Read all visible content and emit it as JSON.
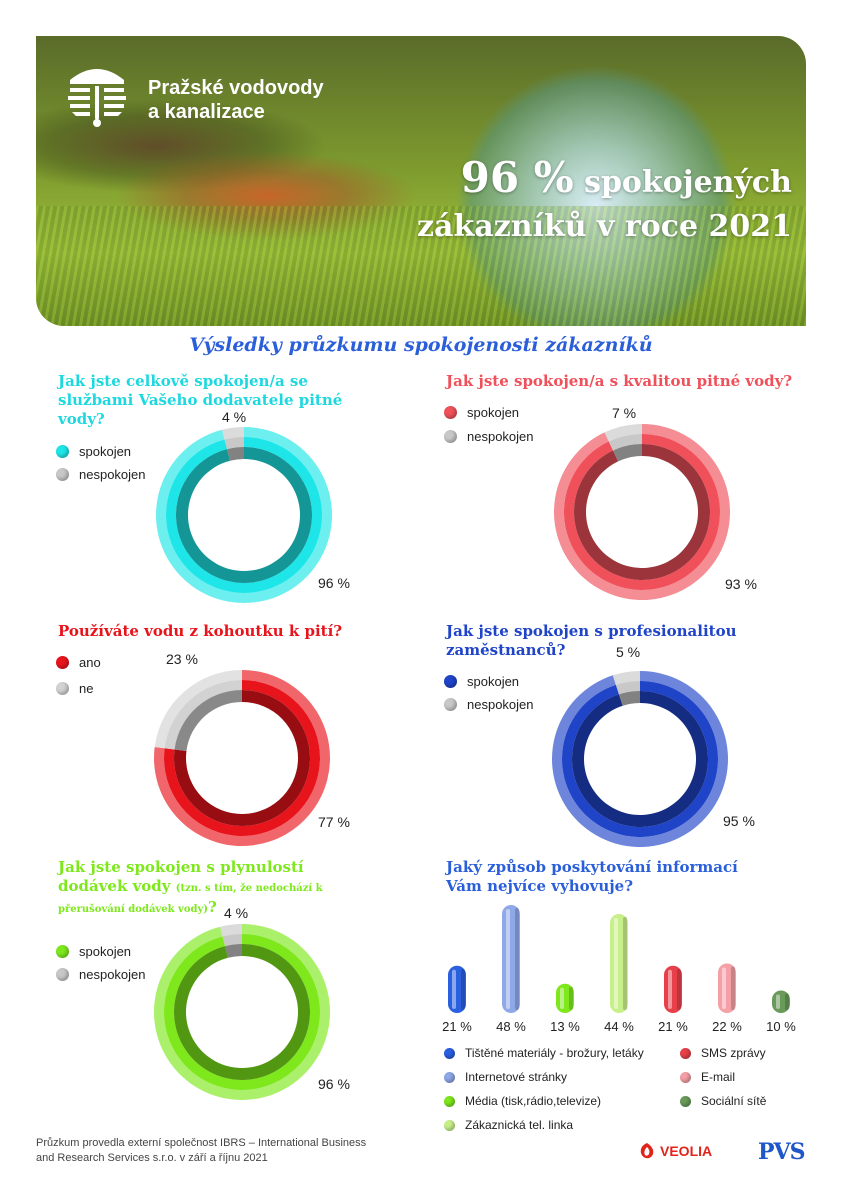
{
  "header": {
    "company_line1": "Pražské vodovody",
    "company_line2": "a kanalizace",
    "headline_percent": "96 %",
    "headline_rest1": "spokojených",
    "headline_line2": "zákazníků v roce 2021"
  },
  "subtitle": "Výsledky průzkumu spokojenosti zákazníků",
  "chart_data": [
    {
      "type": "pie",
      "title": "Jak jste celkově spokojen/a se službami Vašeho dodavatele pitné vody?",
      "labels": [
        "spokojen",
        "nespokojen"
      ],
      "values": [
        96,
        4
      ],
      "value_labels": [
        "96 %",
        "4 %"
      ],
      "colors": [
        "#1ee6e8",
        "#c8c8c8"
      ]
    },
    {
      "type": "pie",
      "title": "Jak jste spokojen/a s kvalitou pitné vody?",
      "labels": [
        "spokojen",
        "nespokojen"
      ],
      "values": [
        93,
        7
      ],
      "value_labels": [
        "93 %",
        "7 %"
      ],
      "colors": [
        "#f0505a",
        "#c8c8c8"
      ]
    },
    {
      "type": "pie",
      "title": "Používáte vodu z kohoutku k pití?",
      "labels": [
        "ano",
        "ne"
      ],
      "values": [
        77,
        23
      ],
      "value_labels": [
        "77 %",
        "23 %"
      ],
      "colors": [
        "#e8141c",
        "#d2d2d2"
      ]
    },
    {
      "type": "pie",
      "title": "Jak jste spokojen s profesionalitou zaměstnanců?",
      "labels": [
        "spokojen",
        "nespokojen"
      ],
      "values": [
        95,
        5
      ],
      "value_labels": [
        "95 %",
        "5 %"
      ],
      "colors": [
        "#1f44c8",
        "#c8c8c8"
      ]
    },
    {
      "type": "pie",
      "title": "Jak jste spokojen s plynulostí dodávek vody",
      "title_note": "(tzn. s tím, že nedochází k přerušování dodávek vody)",
      "title_end": "?",
      "labels": [
        "spokojen",
        "nespokojen"
      ],
      "values": [
        96,
        4
      ],
      "value_labels": [
        "96 %",
        "4 %"
      ],
      "colors": [
        "#7ee81c",
        "#c8c8c8"
      ]
    },
    {
      "type": "bar",
      "title": "Jaký způsob poskytování informací Vám nejvíce vyhovuje?",
      "categories": [
        "Tištěné materiály - brožury, letáky",
        "Internetové stránky",
        "Média (tisk,rádio,televize)",
        "Zákaznická tel. linka",
        "SMS zprávy",
        "E-mail",
        "Sociální sítě"
      ],
      "values": [
        21,
        48,
        13,
        44,
        21,
        22,
        10
      ],
      "value_labels": [
        "21 %",
        "48 %",
        "13 %",
        "44 %",
        "21 %",
        "22 %",
        "10 %"
      ],
      "colors": [
        "#2a5fe0",
        "#8fa8e8",
        "#7ee81c",
        "#c8f08a",
        "#e8404a",
        "#f4a0a6",
        "#6a9a5a"
      ],
      "ylim": [
        0,
        48
      ]
    }
  ],
  "footer": {
    "line1": "Průzkum provedla externí společnost IBRS – International Business",
    "line2": "and Research Services s.r.o. v září a říjnu 2021"
  },
  "logos": {
    "veolia": "VEOLIA",
    "pvs": "PVS"
  }
}
